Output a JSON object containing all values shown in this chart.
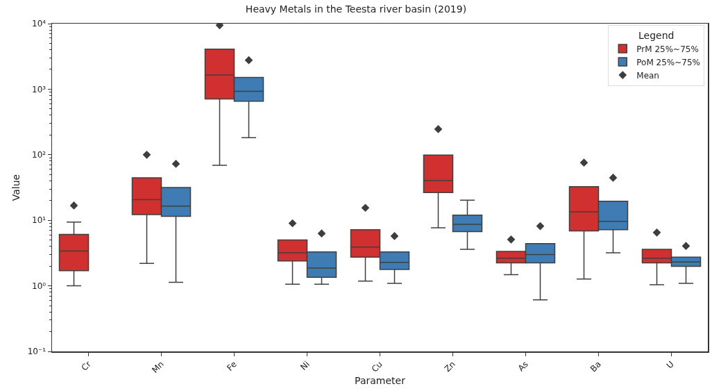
{
  "chart_data": {
    "type": "box",
    "title": "Heavy Metals in the Teesta river basin (2019)",
    "xlabel": "Parameter",
    "ylabel": "Value",
    "legend_title": "Legend",
    "legend": "top right",
    "grid": false,
    "log": "y",
    "categories": [
      "Cr",
      "Mn",
      "Fe",
      "Ni",
      "Cu",
      "Zn",
      "As",
      "Ba",
      "U"
    ],
    "ylim": [
      0.1,
      10000
    ],
    "yticks": [
      {
        "value": 0.1,
        "label": "10⁻¹"
      },
      {
        "value": 1,
        "label": "10⁰"
      },
      {
        "value": 10,
        "label": "10¹"
      },
      {
        "value": 100,
        "label": "10²"
      },
      {
        "value": 1000,
        "label": "10³"
      },
      {
        "value": 10000,
        "label": "10⁴"
      }
    ],
    "series": [
      {
        "name": "PrM 25%~75%",
        "color": "#d0302f",
        "boxes": [
          {
            "low": 1.0,
            "q1": 1.7,
            "median": 3.4,
            "q3": 6.1,
            "high": 9.4
          },
          {
            "low": 2.2,
            "q1": 12.2,
            "median": 20.6,
            "q3": 44.6,
            "high": 44.6
          },
          {
            "low": 69,
            "q1": 707,
            "median": 1640,
            "q3": 4090,
            "high": 4090
          },
          {
            "low": 1.06,
            "q1": 2.4,
            "median": 3.2,
            "q3": 5.0,
            "high": 5.0
          },
          {
            "low": 1.18,
            "q1": 2.75,
            "median": 3.9,
            "q3": 7.2,
            "high": 7.2
          },
          {
            "low": 7.7,
            "q1": 26.5,
            "median": 40.4,
            "q3": 99,
            "high": 99
          },
          {
            "low": 1.48,
            "q1": 2.24,
            "median": 2.65,
            "q3": 3.36,
            "high": 3.36
          },
          {
            "low": 1.27,
            "q1": 6.9,
            "median": 13.5,
            "q3": 32.7,
            "high": 32.7
          },
          {
            "low": 1.04,
            "q1": 2.24,
            "median": 2.65,
            "q3": 3.6,
            "high": 3.6
          }
        ]
      },
      {
        "name": "PoM 25%~75%",
        "color": "#3f7cb4",
        "boxes": [
          null,
          {
            "low": 1.13,
            "q1": 11.5,
            "median": 16.5,
            "q3": 31.7,
            "high": 31.7
          },
          {
            "low": 182,
            "q1": 653,
            "median": 925,
            "q3": 1507,
            "high": 1507
          },
          {
            "low": 1.06,
            "q1": 1.35,
            "median": 1.87,
            "q3": 3.3,
            "high": 3.3
          },
          {
            "low": 1.09,
            "q1": 1.78,
            "median": 2.29,
            "q3": 3.3,
            "high": 3.3
          },
          {
            "low": 3.6,
            "q1": 6.7,
            "median": 8.7,
            "q3": 12,
            "high": 20.3
          },
          {
            "low": 0.61,
            "q1": 2.24,
            "median": 3.0,
            "q3": 4.4,
            "high": 4.4
          },
          {
            "low": 3.2,
            "q1": 7.2,
            "median": 9.6,
            "q3": 19.5,
            "high": 19.5
          },
          {
            "low": 1.09,
            "q1": 1.98,
            "median": 2.31,
            "q3": 2.75,
            "high": 2.75
          }
        ]
      },
      {
        "name": "Mean",
        "type": "scatter",
        "marker": "diamond",
        "color": "#3d3d3d",
        "values": [
          16.8,
          100,
          9440,
          9.0,
          15.5,
          246,
          5.1,
          75.7,
          6.5
        ]
      },
      {
        "type": "scatter",
        "marker": "diamond",
        "color": "#3d3d3d",
        "values": [
          null,
          72.6,
          2770,
          6.3,
          5.75,
          null,
          8.15,
          44.6,
          4.06
        ]
      }
    ]
  }
}
